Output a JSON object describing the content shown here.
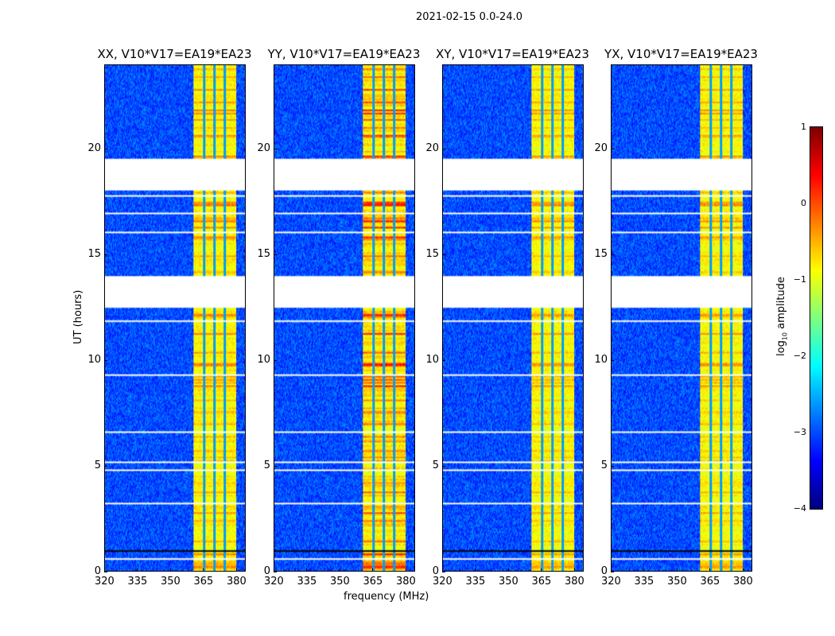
{
  "suptitle": "2021-02-15 0.0-24.0",
  "chart_data": {
    "type": "heatmap",
    "title": "2021-02-15 0.0-24.0",
    "xlabel": "frequency (MHz)",
    "ylabel": "UT (hours)",
    "xlim": [
      320,
      384
    ],
    "ylim": [
      0,
      24
    ],
    "xticks": [
      "320",
      "335",
      "350",
      "365",
      "380"
    ],
    "xtick_values": [
      320,
      335,
      350,
      365,
      380
    ],
    "yticks": [
      "0",
      "5",
      "10",
      "15",
      "20"
    ],
    "ytick_values": [
      0,
      5,
      10,
      15,
      20
    ],
    "panels": [
      {
        "title": "XX, V10*V17=EA19*EA23",
        "band_peak": -0.3
      },
      {
        "title": "YY, V10*V17=EA19*EA23",
        "band_peak": 0.15
      },
      {
        "title": "XY, V10*V17=EA19*EA23",
        "band_peak": -0.4
      },
      {
        "title": "YX, V10*V17=EA19*EA23",
        "band_peak": -0.4
      }
    ],
    "background_log_amplitude": -3,
    "rfi_band_mhz": [
      360.5,
      380
    ],
    "rfi_band_log_amplitude": -1,
    "channel_gaps_mhz": [
      365.5,
      370.2,
      374.9
    ],
    "flagged_hours": [
      [
        18.05,
        19.5
      ],
      [
        12.6,
        14.0
      ]
    ],
    "colorbar": {
      "label": "log10 amplitude",
      "label_main": "log",
      "label_sub": "10",
      "label_rest": " amplitude",
      "colormap": "jet",
      "range": [
        -4,
        1
      ],
      "ticks": [
        "1",
        "0",
        "−1",
        "−2",
        "−3",
        "−4"
      ],
      "tick_values": [
        1,
        0,
        -1,
        -2,
        -3,
        -4
      ]
    }
  }
}
